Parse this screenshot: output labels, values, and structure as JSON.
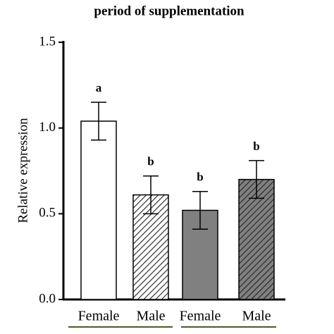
{
  "chart_data": {
    "type": "bar",
    "title": "period of supplementation",
    "y_label": "Relative expression",
    "categories": [
      "Female",
      "Male",
      "Female",
      "Male"
    ],
    "values": [
      1.04,
      0.61,
      0.52,
      0.7
    ],
    "errors": [
      0.11,
      0.11,
      0.11,
      0.11
    ],
    "letters": [
      "a",
      "b",
      "b",
      "b"
    ],
    "colors": [
      "#ffffff",
      "#ffffff",
      "#808080",
      "#808080"
    ],
    "hatched": [
      false,
      true,
      false,
      true
    ],
    "ylim": [
      0,
      1.5
    ],
    "yticks": [
      {
        "value": 0,
        "label": "0.0"
      },
      0.5,
      {
        "value": 1,
        "label": "1.0"
      },
      {
        "value": 1.5,
        "label": "1.5"
      }
    ]
  }
}
